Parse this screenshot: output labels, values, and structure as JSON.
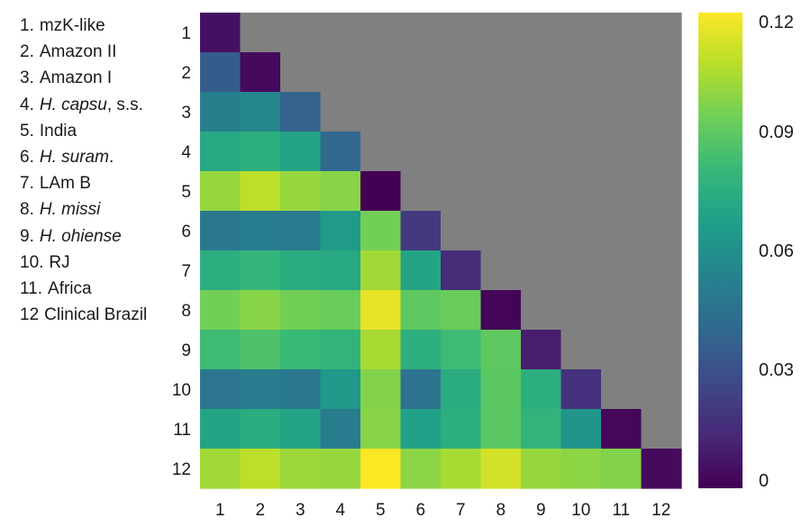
{
  "legend": [
    {
      "num": "1.",
      "parts": [
        {
          "text": "mzK-like",
          "italic": false
        }
      ]
    },
    {
      "num": "2.",
      "parts": [
        {
          "text": "Amazon II",
          "italic": false
        }
      ]
    },
    {
      "num": "3.",
      "parts": [
        {
          "text": "Amazon I",
          "italic": false
        }
      ]
    },
    {
      "num": "4.",
      "parts": [
        {
          "text": "H. capsu",
          "italic": true
        },
        {
          "text": ", s.s.",
          "italic": false
        }
      ]
    },
    {
      "num": "5.",
      "parts": [
        {
          "text": "India",
          "italic": false
        }
      ]
    },
    {
      "num": "6.",
      "parts": [
        {
          "text": "H. suram",
          "italic": true
        },
        {
          "text": ".",
          "italic": false
        }
      ]
    },
    {
      "num": "7.",
      "parts": [
        {
          "text": "LAm B",
          "italic": false
        }
      ]
    },
    {
      "num": "8.",
      "parts": [
        {
          "text": "H. missi",
          "italic": true
        }
      ]
    },
    {
      "num": "9.",
      "parts": [
        {
          "text": "H. ohiense",
          "italic": true
        }
      ]
    },
    {
      "num": "10.",
      "parts": [
        {
          "text": "RJ",
          "italic": false
        }
      ]
    },
    {
      "num": "11.",
      "parts": [
        {
          "text": "Africa",
          "italic": false
        }
      ]
    },
    {
      "num": "12",
      "parts": [
        {
          "text": "Clinical Brazil",
          "italic": false
        }
      ]
    }
  ],
  "colors": {
    "masked": "#808080",
    "background": "#ffffff",
    "text": "#1a1a1a",
    "viridis": [
      "#440154",
      "#482878",
      "#3e4989",
      "#31688e",
      "#26828e",
      "#1f9e89",
      "#35b779",
      "#6ece58",
      "#b5de2b",
      "#fde725"
    ]
  },
  "chart_data": {
    "type": "heatmap",
    "title": "",
    "xlabel": "",
    "ylabel": "",
    "x_tick_labels": [
      "1",
      "2",
      "3",
      "4",
      "5",
      "6",
      "7",
      "8",
      "9",
      "10",
      "11",
      "12"
    ],
    "y_tick_labels": [
      "1",
      "2",
      "3",
      "4",
      "5",
      "6",
      "7",
      "8",
      "9",
      "10",
      "11",
      "12"
    ],
    "masked": "upper triangle (above diagonal) shown in gray",
    "values": [
      [
        0.005,
        null,
        null,
        null,
        null,
        null,
        null,
        null,
        null,
        null,
        null,
        null
      ],
      [
        0.035,
        0.003,
        null,
        null,
        null,
        null,
        null,
        null,
        null,
        null,
        null,
        null
      ],
      [
        0.052,
        0.055,
        0.038,
        null,
        null,
        null,
        null,
        null,
        null,
        null,
        null,
        null
      ],
      [
        0.072,
        0.076,
        0.07,
        0.04,
        null,
        null,
        null,
        null,
        null,
        null,
        null,
        null
      ],
      [
        0.101,
        0.108,
        0.101,
        0.098,
        0.0,
        null,
        null,
        null,
        null,
        null,
        null,
        null
      ],
      [
        0.048,
        0.051,
        0.049,
        0.065,
        0.094,
        0.02,
        null,
        null,
        null,
        null,
        null,
        null
      ],
      [
        0.075,
        0.079,
        0.074,
        0.072,
        0.103,
        0.07,
        0.015,
        null,
        null,
        null,
        null,
        null
      ],
      [
        0.094,
        0.098,
        0.094,
        0.092,
        0.116,
        0.09,
        0.092,
        0.001,
        null,
        null,
        null,
        null
      ],
      [
        0.082,
        0.086,
        0.081,
        0.078,
        0.104,
        0.076,
        0.082,
        0.09,
        0.01,
        null,
        null,
        null
      ],
      [
        0.047,
        0.05,
        0.048,
        0.064,
        0.097,
        0.045,
        0.074,
        0.089,
        0.075,
        0.017,
        null,
        null
      ],
      [
        0.07,
        0.074,
        0.069,
        0.05,
        0.098,
        0.068,
        0.075,
        0.089,
        0.078,
        0.062,
        0.002,
        null
      ],
      [
        0.103,
        0.108,
        0.102,
        0.101,
        0.12,
        0.099,
        0.104,
        0.112,
        0.101,
        0.099,
        0.097,
        0.003
      ]
    ],
    "colorbar": {
      "range": [
        0,
        0.12
      ],
      "tick_values": [
        0,
        0.03,
        0.06,
        0.09,
        0.12
      ],
      "tick_labels": [
        "0",
        "0.03",
        "0.06",
        "0.09",
        "0.12"
      ],
      "colormap": "viridis"
    }
  }
}
